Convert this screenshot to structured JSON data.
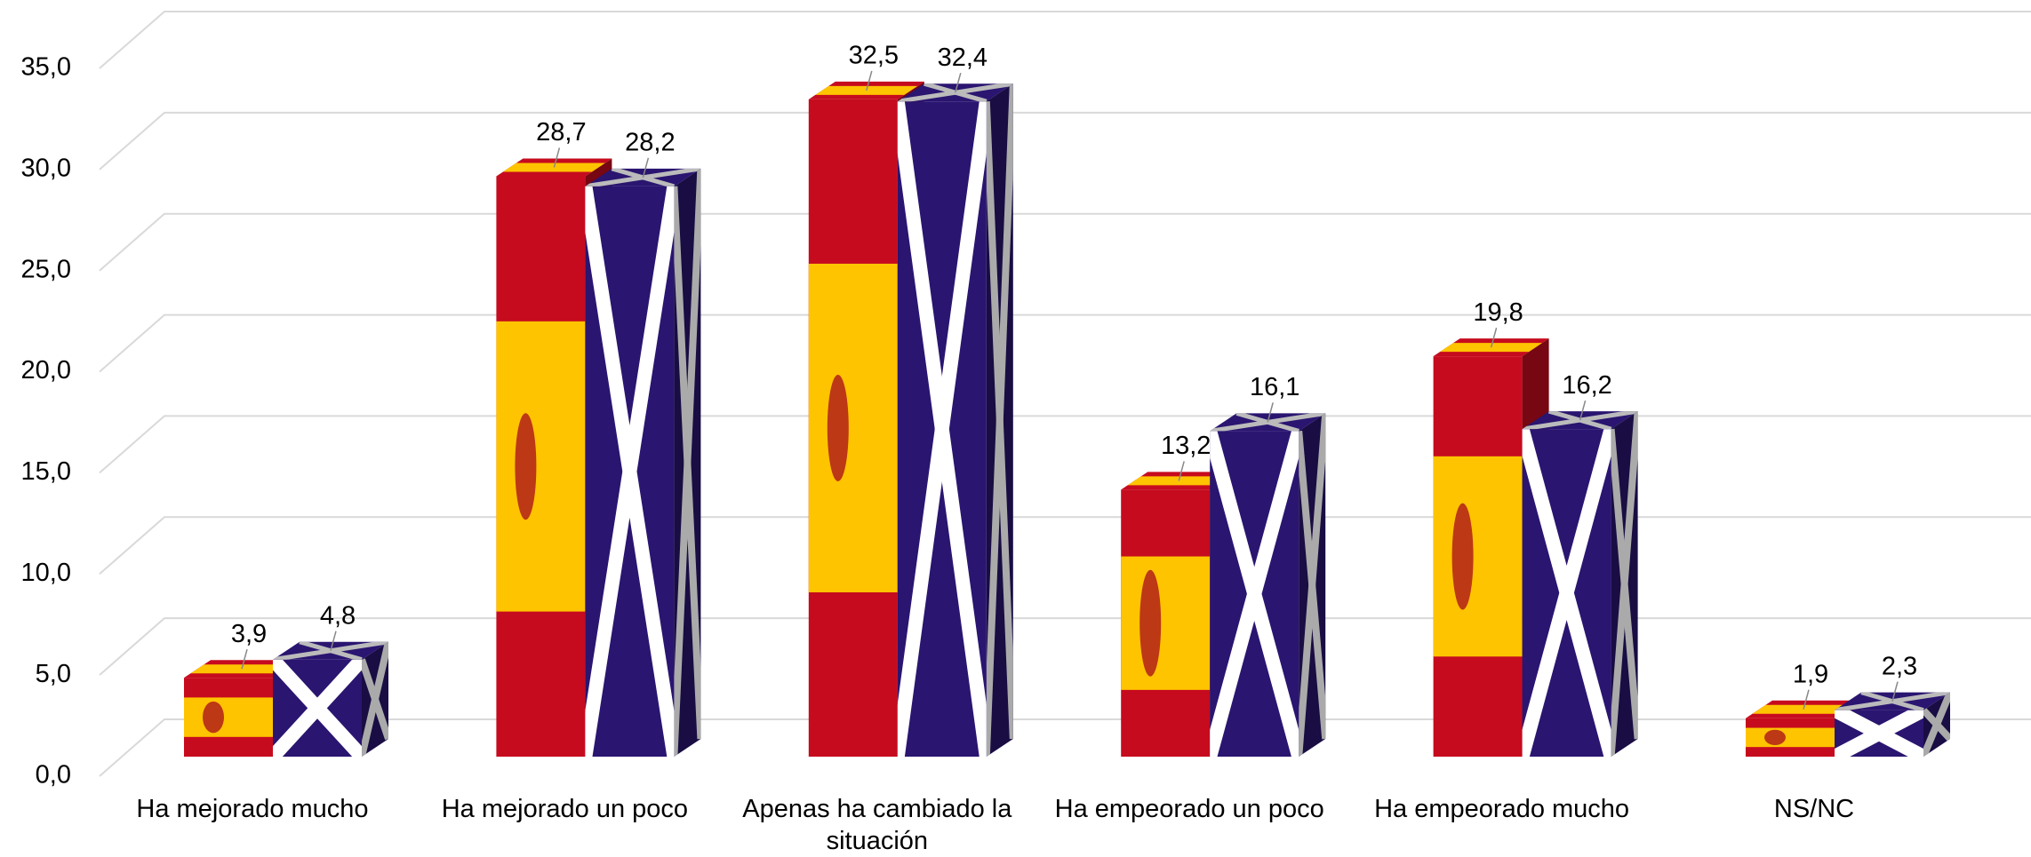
{
  "chart_data": {
    "type": "bar3d",
    "categories": [
      "Ha mejorado mucho",
      "Ha mejorado un poco",
      "Apenas ha cambiado la situación",
      "Ha empeorado un poco",
      "Ha empeorado mucho",
      "NS/NC"
    ],
    "series": [
      {
        "color": "#c60b1e",
        "values": [
          3.9,
          28.7,
          32.5,
          13.2,
          19.8,
          1.9
        ],
        "value_labels": [
          "3,9",
          "28,7",
          "32,5",
          "13,2",
          "19,8",
          "1,9"
        ]
      },
      {
        "color": "#2a1570",
        "values": [
          4.8,
          28.2,
          32.4,
          16.1,
          16.2,
          2.3
        ],
        "value_labels": [
          "4,8",
          "28,2",
          "32,4",
          "16,1",
          "16,2",
          "2,3"
        ]
      }
    ],
    "ylim": [
      0,
      35
    ],
    "yticks": [
      {
        "value": 0,
        "label": "0,0"
      },
      {
        "value": 5,
        "label": "5,0"
      },
      {
        "value": 10,
        "label": "10,0"
      },
      {
        "value": 15,
        "label": "15,0"
      },
      {
        "value": 20,
        "label": "20,0"
      },
      {
        "value": 25,
        "label": "25,0"
      },
      {
        "value": 30,
        "label": "30,0"
      },
      {
        "value": 35,
        "label": "35,0"
      }
    ],
    "grid": true
  }
}
